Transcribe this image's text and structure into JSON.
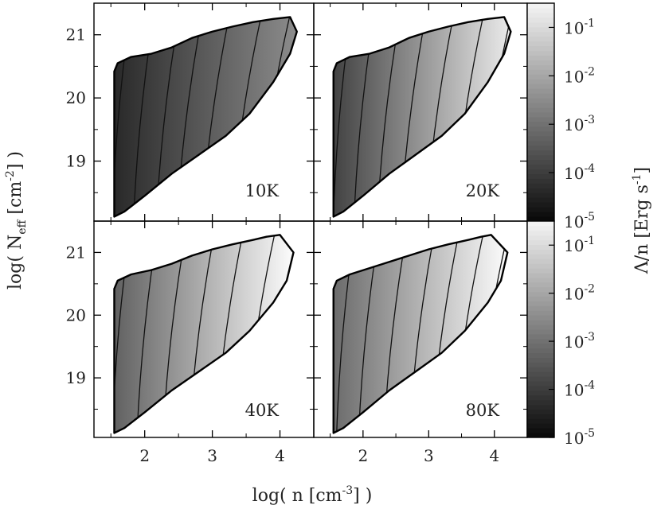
{
  "chart_data": {
    "type": "heatmap",
    "x_axis": {
      "label": "log( n [cm",
      "label_exp": "-3",
      "label_tail": "] )",
      "range": [
        1.25,
        4.5
      ],
      "ticks": [
        2,
        3,
        4
      ]
    },
    "y_axis": {
      "label": "log( N",
      "label_sub": "eff",
      "label_mid": " [cm",
      "label_exp": "-2",
      "label_tail": "] )",
      "range": [
        18.05,
        21.5
      ],
      "ticks": [
        19,
        20,
        21
      ]
    },
    "colorbar": {
      "label": "Λ/n   [Erg s",
      "label_exp": "-1",
      "label_tail": "]",
      "scale": "log",
      "range_exponents": [
        -5,
        -0.5
      ],
      "tick_base": "10",
      "tick_exponents": [
        "-1",
        "-2",
        "-3",
        "-4",
        "-5"
      ]
    },
    "panels": [
      {
        "label": "10K",
        "brightness": [
          0.16,
          0.55
        ],
        "contours_log_n": [
          1.62,
          1.95,
          2.3,
          2.62,
          3.0,
          3.45,
          3.85
        ],
        "upper_edge": [
          [
            1.55,
            20.42
          ],
          [
            1.6,
            20.55
          ],
          [
            1.8,
            20.65
          ],
          [
            2.1,
            20.7
          ],
          [
            2.4,
            20.8
          ],
          [
            2.7,
            20.95
          ],
          [
            3.0,
            21.05
          ],
          [
            3.3,
            21.13
          ],
          [
            3.6,
            21.2
          ],
          [
            3.9,
            21.25
          ],
          [
            4.15,
            21.28
          ]
        ],
        "lower_edge": [
          [
            1.55,
            18.12
          ],
          [
            1.7,
            18.2
          ],
          [
            2.0,
            18.45
          ],
          [
            2.4,
            18.8
          ],
          [
            2.8,
            19.1
          ],
          [
            3.2,
            19.4
          ],
          [
            3.55,
            19.75
          ],
          [
            3.9,
            20.25
          ],
          [
            4.15,
            20.7
          ],
          [
            4.25,
            21.05
          ]
        ]
      },
      {
        "label": "20K",
        "brightness": [
          0.26,
          0.92
        ],
        "contours_log_n": [
          1.65,
          1.98,
          2.35,
          2.72,
          3.12,
          3.55,
          3.95
        ],
        "upper_edge": [
          [
            1.55,
            20.42
          ],
          [
            1.6,
            20.55
          ],
          [
            1.8,
            20.65
          ],
          [
            2.1,
            20.7
          ],
          [
            2.4,
            20.8
          ],
          [
            2.7,
            20.95
          ],
          [
            3.0,
            21.05
          ],
          [
            3.3,
            21.13
          ],
          [
            3.6,
            21.2
          ],
          [
            3.9,
            21.25
          ],
          [
            4.15,
            21.28
          ]
        ],
        "lower_edge": [
          [
            1.55,
            18.12
          ],
          [
            1.7,
            18.2
          ],
          [
            2.0,
            18.45
          ],
          [
            2.4,
            18.8
          ],
          [
            2.8,
            19.1
          ],
          [
            3.2,
            19.4
          ],
          [
            3.55,
            19.75
          ],
          [
            3.9,
            20.25
          ],
          [
            4.15,
            20.7
          ],
          [
            4.25,
            21.05
          ]
        ]
      },
      {
        "label": "40K",
        "brightness": [
          0.38,
          1.0
        ],
        "contours_log_n": [
          1.62,
          2.0,
          2.4,
          2.8,
          3.2,
          3.65,
          4.05
        ],
        "upper_edge": [
          [
            1.55,
            20.42
          ],
          [
            1.6,
            20.55
          ],
          [
            1.8,
            20.65
          ],
          [
            2.1,
            20.72
          ],
          [
            2.4,
            20.82
          ],
          [
            2.7,
            20.95
          ],
          [
            3.0,
            21.05
          ],
          [
            3.3,
            21.13
          ],
          [
            3.6,
            21.2
          ],
          [
            3.8,
            21.25
          ],
          [
            4.0,
            21.28
          ]
        ],
        "lower_edge": [
          [
            1.55,
            18.12
          ],
          [
            1.7,
            18.2
          ],
          [
            2.0,
            18.45
          ],
          [
            2.4,
            18.8
          ],
          [
            2.8,
            19.1
          ],
          [
            3.2,
            19.4
          ],
          [
            3.55,
            19.75
          ],
          [
            3.9,
            20.2
          ],
          [
            4.1,
            20.55
          ],
          [
            4.2,
            21.0
          ]
        ]
      },
      {
        "label": "80K",
        "brightness": [
          0.42,
          1.0
        ],
        "contours_log_n": [
          1.7,
          2.05,
          2.45,
          2.85,
          3.2,
          3.55,
          3.9
        ],
        "upper_edge": [
          [
            1.55,
            20.42
          ],
          [
            1.6,
            20.55
          ],
          [
            1.8,
            20.65
          ],
          [
            2.1,
            20.75
          ],
          [
            2.4,
            20.85
          ],
          [
            2.7,
            20.95
          ],
          [
            3.0,
            21.05
          ],
          [
            3.3,
            21.13
          ],
          [
            3.6,
            21.2
          ],
          [
            3.8,
            21.25
          ],
          [
            3.95,
            21.28
          ]
        ],
        "lower_edge": [
          [
            1.55,
            18.12
          ],
          [
            1.7,
            18.2
          ],
          [
            2.0,
            18.45
          ],
          [
            2.4,
            18.8
          ],
          [
            2.8,
            19.1
          ],
          [
            3.2,
            19.4
          ],
          [
            3.55,
            19.75
          ],
          [
            3.9,
            20.2
          ],
          [
            4.1,
            20.55
          ],
          [
            4.2,
            21.0
          ]
        ]
      }
    ]
  }
}
